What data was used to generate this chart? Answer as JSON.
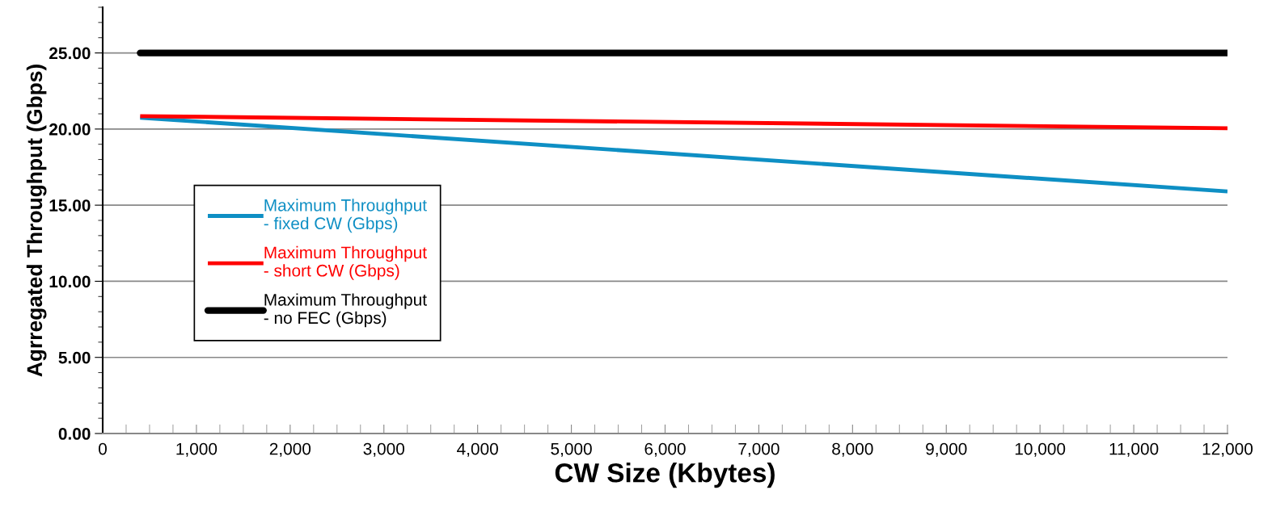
{
  "chart_data": {
    "type": "line",
    "xlabel": "CW Size (Kbytes)",
    "ylabel": "Agrregated Throughput (Gbps)",
    "x": [
      400,
      12000
    ],
    "series": [
      {
        "name": "Maximum Throughput\n- fixed CW (Gbps)",
        "color": "#0e8fc4",
        "values": [
          20.75,
          15.9
        ]
      },
      {
        "name": "Maximum Throughput\n- short CW (Gbps)",
        "color": "#ff0000",
        "values": [
          20.85,
          20.05
        ]
      },
      {
        "name": "Maximum Throughput\n- no FEC (Gbps)",
        "color": "#000000",
        "values": [
          25,
          25
        ]
      }
    ],
    "xlim": [
      0,
      12000
    ],
    "xticks": [
      0,
      {
        "value": 1000,
        "label": "1,000"
      },
      {
        "value": 2000,
        "label": "2,000"
      },
      {
        "value": 3000,
        "label": "3,000"
      },
      {
        "value": 4000,
        "label": "4,000"
      },
      {
        "value": 5000,
        "label": "5,000"
      },
      {
        "value": 6000,
        "label": "6,000"
      },
      {
        "value": 7000,
        "label": "7,000"
      },
      {
        "value": 8000,
        "label": "8,000"
      },
      {
        "value": 9000,
        "label": "9,000"
      },
      {
        "value": 10000,
        "label": "10,000"
      },
      {
        "value": 11000,
        "label": "11,000"
      },
      {
        "value": 12000,
        "label": "12,000"
      }
    ],
    "ylim": [
      0,
      28
    ],
    "yticks": [
      {
        "value": 0,
        "label": "0.00"
      },
      {
        "value": 5,
        "label": "5.00"
      },
      {
        "value": 10,
        "label": "10.00"
      },
      {
        "value": 15,
        "label": "15.00"
      },
      {
        "value": 20,
        "label": "20.00"
      },
      {
        "value": 25,
        "label": "25.00"
      }
    ],
    "grid": "y",
    "legend": "left",
    "marker": "none",
    "line_style": "solid"
  }
}
